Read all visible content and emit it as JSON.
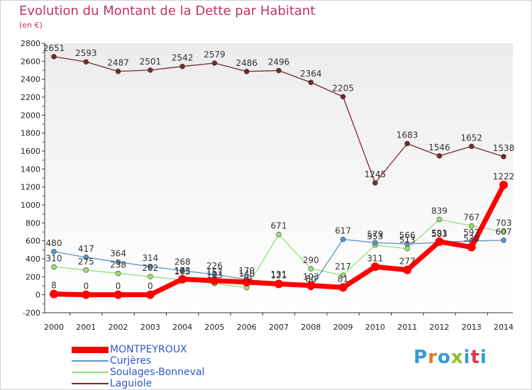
{
  "title": "Evolution du Montant de la Dette par Habitant",
  "unit_label": "(en €)",
  "brand": "Proxiti",
  "chart_data": {
    "type": "line",
    "x": [
      "2000",
      "2001",
      "2002",
      "2003",
      "2004",
      "2005",
      "2006",
      "2007",
      "2008",
      "2009",
      "2010",
      "2011",
      "2012",
      "2013",
      "2014"
    ],
    "ylim": [
      -200,
      2800
    ],
    "yticks": [
      -200,
      0,
      200,
      400,
      600,
      800,
      1000,
      1200,
      1400,
      1600,
      1800,
      2000,
      2200,
      2400,
      2600,
      2800
    ],
    "grid": false,
    "legend_position": "bottom-left",
    "series": [
      {
        "name": "MONTPEYROUX",
        "color": "#ff0000",
        "values": [
          8,
          0,
          0,
          0,
          173,
          157,
          140,
          121,
          103,
          81,
          311,
          277,
          591,
          530,
          1222
        ],
        "labels": [
          "8",
          "0",
          "0",
          "0",
          "173",
          "157",
          "140",
          "121",
          "103",
          "81",
          "311",
          "277",
          "591",
          "530",
          "1222"
        ]
      },
      {
        "name": "Curjères",
        "color": "#5a96c8",
        "values": [
          480,
          417,
          364,
          314,
          268,
          226,
          170,
          131,
          80,
          617,
          579,
          566,
          583,
          597,
          607
        ],
        "labels": [
          "480",
          "417",
          "364",
          "314",
          "268",
          "226",
          "170",
          "131",
          "80",
          "617",
          "579",
          "566",
          "583",
          "597",
          "607"
        ]
      },
      {
        "name": "Soulages-Bonneval",
        "color": "#99dd77",
        "values": [
          310,
          275,
          238,
          202,
          165,
          123,
          79,
          671,
          290,
          217,
          553,
          513,
          839,
          767,
          703
        ],
        "labels": [
          "310",
          "275",
          "238",
          "202",
          "165",
          "123",
          "79",
          "671",
          "290",
          "217",
          "553",
          "513",
          "839",
          "767",
          "703"
        ]
      },
      {
        "name": "Laguiole",
        "color": "#7a2830",
        "values": [
          2651,
          2593,
          2487,
          2501,
          2542,
          2579,
          2486,
          2496,
          2364,
          2205,
          1245,
          1683,
          1546,
          1652,
          1538
        ],
        "labels": [
          "2651",
          "2593",
          "2487",
          "2501",
          "2542",
          "2579",
          "2486",
          "2496",
          "2364",
          "2205",
          "1245",
          "1683",
          "1546",
          "1652",
          "1538"
        ]
      }
    ]
  }
}
